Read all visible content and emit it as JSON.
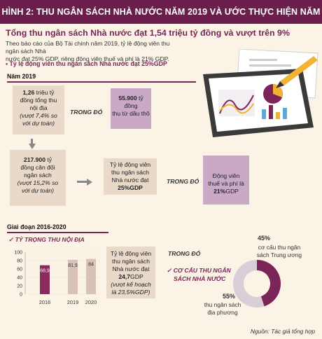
{
  "header": {
    "title": "HÌNH 2: THU NGÂN SÁCH NHÀ NƯỚC NĂM 2019 VÀ ƯỚC THỰC HIỆN NĂM 2020"
  },
  "headline": "Tổng thu ngân sách Nhà nước đạt 1,54 triệu tỷ đồng và vượt trên 9%",
  "intro": [
    "Theo báo cáo của Bộ Tài chính năm 2019, tỷ lệ động viên thu ngân sách Nhà",
    "nước đạt 25% GDP, riêng động viên thuế và phí là 21% GDP."
  ],
  "bullet": "▪ Tỷ lệ động viên thu ngân sách Nhà nước đạt 25%GDP",
  "year_2019": {
    "label": "Năm 2019",
    "box1": {
      "value": "1,26",
      "l1": "triệu tỷ",
      "l2": "đồng tổng thu",
      "l3": "nội địa",
      "note1": "(vượt 7,4% so",
      "note2": "với dự toán)"
    },
    "trong_do_1": "TRONG ĐÓ",
    "box2": {
      "value": "55.900",
      "l1": "tỷ",
      "l2": "đồng",
      "l3": "thu từ dầu thô"
    },
    "box3": {
      "value": "217.900",
      "l1": "tỷ",
      "l2": "đồng cân đối",
      "l3": "ngân sách",
      "note1": "(vượt 15,2% so",
      "note2": "với dự toán)"
    },
    "box4": {
      "l1": "Tỷ lệ động viên",
      "l2": "thu ngân sách",
      "l3": "Nhà nước đạt",
      "value": "25%GDP"
    },
    "trong_do_2": "TRONG ĐÓ",
    "box5": {
      "l1": "Động viên",
      "l2": "thuế và phí là",
      "value": "21%",
      "suffix": "GDP"
    }
  },
  "period": {
    "label": "Giai đoạn 2016-2020",
    "sub_title": "✓ TỶ TRỌNG THU NỘI ĐỊA",
    "trong_do": "TRONG ĐÓ",
    "pie_title_1": "✓ CƠ CẤU THU NGÂN",
    "pie_title_2": "SÁCH NHÀ NƯỚC",
    "box6": {
      "l1": "Tỷ lệ động viên",
      "l2": "thu ngân sách",
      "l3": "Nhà nước đạt",
      "value": "24,7",
      "suffix": "GDP",
      "note1": "(vượt kế hoạch",
      "note2": "là 23,5%GDP)"
    },
    "pie": {
      "central_pct": "45%",
      "central_l1": "cơ cấu thu ngân",
      "central_l2": "sách Trung ương",
      "local_pct": "55%",
      "local_l1": "thu ngân sách",
      "local_l2": "địa phương",
      "central_value": 45,
      "local_value": 55,
      "color_central": "#7a2458",
      "color_local": "#d9cdd7"
    }
  },
  "chart_data": {
    "type": "bar",
    "categories": [
      "2016",
      "2019",
      "2020"
    ],
    "values": [
      68.9,
      81.9,
      84
    ],
    "value_labels": [
      "68,9",
      "81,9",
      "84"
    ],
    "y_ticks": [
      "100",
      "80",
      "60",
      "40",
      "20",
      "0"
    ],
    "ylim": [
      0,
      100
    ],
    "colors": [
      "#8b2a5e",
      "#d9c1b8",
      "#d9c1b8"
    ]
  },
  "source": "Nguồn: Tác giả tổng hợp"
}
